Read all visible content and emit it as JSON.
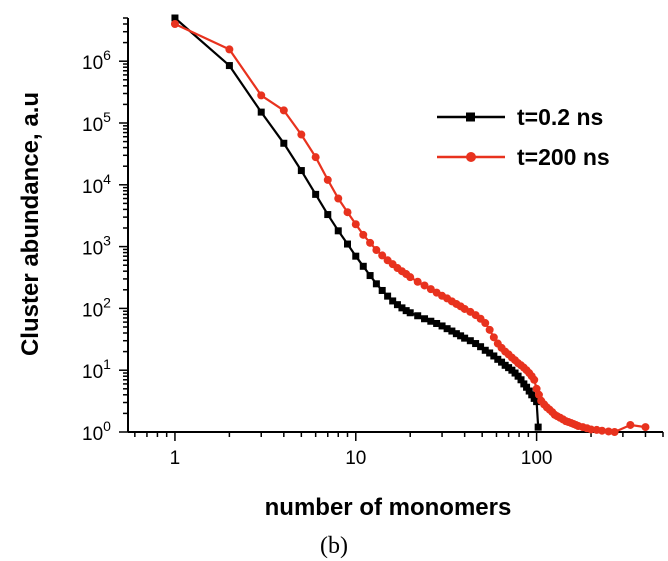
{
  "caption": "(b)",
  "chart_data": {
    "type": "scatter",
    "xlabel": "number of monomers",
    "ylabel": "Cluster abundance, a.u",
    "xscale": "log",
    "yscale": "log",
    "xlim": [
      0.55,
      500
    ],
    "ylim": [
      1,
      5000000
    ],
    "x_ticks": [
      {
        "value": 1,
        "label": "1"
      },
      {
        "value": 10,
        "label": "10"
      },
      {
        "value": 100,
        "label": "100"
      }
    ],
    "y_ticks": [
      {
        "value": 1,
        "base": "10",
        "exp": "0"
      },
      {
        "value": 10,
        "base": "10",
        "exp": "1"
      },
      {
        "value": 100,
        "base": "10",
        "exp": "2"
      },
      {
        "value": 1000,
        "base": "10",
        "exp": "3"
      },
      {
        "value": 10000,
        "base": "10",
        "exp": "4"
      },
      {
        "value": 100000,
        "base": "10",
        "exp": "5"
      },
      {
        "value": 1000000,
        "base": "10",
        "exp": "6"
      }
    ],
    "grid": false,
    "legend_position": "top-right",
    "series": [
      {
        "name": "t=0.2 ns",
        "color": "#000000",
        "marker": "square",
        "points": [
          [
            1,
            5000000
          ],
          [
            2,
            850000
          ],
          [
            3,
            150000
          ],
          [
            4,
            47000
          ],
          [
            5,
            17000
          ],
          [
            6,
            7000
          ],
          [
            7,
            3300
          ],
          [
            8,
            1800
          ],
          [
            9,
            1100
          ],
          [
            10,
            700
          ],
          [
            11,
            480
          ],
          [
            12,
            340
          ],
          [
            13,
            250
          ],
          [
            14,
            195
          ],
          [
            15,
            158
          ],
          [
            16,
            132
          ],
          [
            17,
            115
          ],
          [
            18,
            102
          ],
          [
            19,
            92
          ],
          [
            20,
            85
          ],
          [
            22,
            76
          ],
          [
            24,
            68
          ],
          [
            26,
            62
          ],
          [
            28,
            57
          ],
          [
            30,
            52
          ],
          [
            32,
            47
          ],
          [
            34,
            43
          ],
          [
            36,
            39
          ],
          [
            38,
            36
          ],
          [
            40,
            33
          ],
          [
            43,
            30
          ],
          [
            46,
            27
          ],
          [
            49,
            24
          ],
          [
            52,
            21
          ],
          [
            55,
            19
          ],
          [
            58,
            17
          ],
          [
            61,
            15
          ],
          [
            64,
            13.5
          ],
          [
            67,
            12
          ],
          [
            70,
            11
          ],
          [
            73,
            10
          ],
          [
            76,
            9
          ],
          [
            79,
            8
          ],
          [
            82,
            7
          ],
          [
            85,
            6
          ],
          [
            88,
            5.3
          ],
          [
            91,
            4.6
          ],
          [
            94,
            4
          ],
          [
            97,
            3.5
          ],
          [
            100,
            3.1
          ],
          [
            102,
            1.2
          ]
        ]
      },
      {
        "name": "t=200 ns",
        "color": "#e8321e",
        "marker": "circle",
        "points": [
          [
            1,
            4000000
          ],
          [
            2,
            1550000
          ],
          [
            3,
            280000
          ],
          [
            4,
            160000
          ],
          [
            5,
            65000
          ],
          [
            6,
            28000
          ],
          [
            7,
            12000
          ],
          [
            8,
            6000
          ],
          [
            9,
            3600
          ],
          [
            10,
            2300
          ],
          [
            11,
            1550
          ],
          [
            12,
            1150
          ],
          [
            13,
            880
          ],
          [
            14,
            720
          ],
          [
            15,
            600
          ],
          [
            16,
            520
          ],
          [
            17,
            450
          ],
          [
            18,
            400
          ],
          [
            19,
            360
          ],
          [
            20,
            320
          ],
          [
            22,
            270
          ],
          [
            24,
            235
          ],
          [
            26,
            205
          ],
          [
            28,
            180
          ],
          [
            30,
            160
          ],
          [
            32,
            145
          ],
          [
            34,
            130
          ],
          [
            36,
            118
          ],
          [
            38,
            108
          ],
          [
            40,
            98
          ],
          [
            43,
            88
          ],
          [
            46,
            78
          ],
          [
            49,
            68
          ],
          [
            52,
            58
          ],
          [
            55,
            45
          ],
          [
            58,
            34
          ],
          [
            61,
            27
          ],
          [
            64,
            23
          ],
          [
            67,
            20
          ],
          [
            70,
            18
          ],
          [
            73,
            16
          ],
          [
            76,
            14.5
          ],
          [
            79,
            13
          ],
          [
            82,
            12
          ],
          [
            85,
            11
          ],
          [
            88,
            10
          ],
          [
            91,
            9
          ],
          [
            94,
            8
          ],
          [
            97,
            7
          ],
          [
            100,
            5
          ],
          [
            103,
            4
          ],
          [
            106,
            3.2
          ],
          [
            110,
            2.8
          ],
          [
            114,
            2.5
          ],
          [
            118,
            2.3
          ],
          [
            122,
            2.1
          ],
          [
            126,
            1.9
          ],
          [
            130,
            1.8
          ],
          [
            135,
            1.7
          ],
          [
            140,
            1.6
          ],
          [
            145,
            1.5
          ],
          [
            150,
            1.45
          ],
          [
            155,
            1.4
          ],
          [
            160,
            1.35
          ],
          [
            165,
            1.3
          ],
          [
            170,
            1.25
          ],
          [
            180,
            1.2
          ],
          [
            190,
            1.15
          ],
          [
            200,
            1.1
          ],
          [
            215,
            1.08
          ],
          [
            230,
            1.05
          ],
          [
            250,
            1.02
          ],
          [
            270,
            1.0
          ],
          [
            330,
            1.3
          ],
          [
            400,
            1.2
          ]
        ]
      }
    ]
  }
}
